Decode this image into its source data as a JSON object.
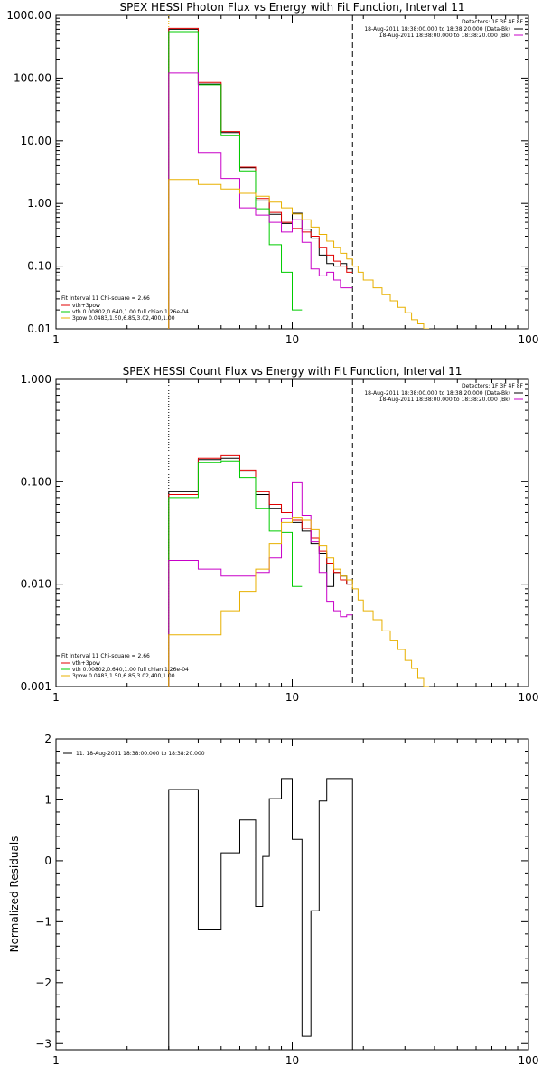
{
  "colors": {
    "black": "#000000",
    "red": "#e00000",
    "green": "#00cc00",
    "magenta": "#c800c8",
    "orange": "#e8b000",
    "background": "#ffffff"
  },
  "chart_data": [
    {
      "type": "line",
      "title": "SPEX HESSI Photon Flux vs Energy with Fit Function, Interval 11",
      "xlabel": "",
      "ylabel": "",
      "xscale": "log",
      "yscale": "log",
      "xlim": [
        1,
        100
      ],
      "ylim": [
        0.01,
        1000
      ],
      "xticks": [
        {
          "v": 1,
          "label": "1"
        },
        {
          "v": 10,
          "label": "10"
        },
        {
          "v": 100,
          "label": "100"
        }
      ],
      "yticks": [
        {
          "v": 0.01,
          "label": "0.01"
        },
        {
          "v": 0.1,
          "label": "0.10"
        },
        {
          "v": 1,
          "label": "1.00"
        },
        {
          "v": 10,
          "label": "10.00"
        },
        {
          "v": 100,
          "label": "100.00"
        },
        {
          "v": 1000,
          "label": "1000.00"
        }
      ],
      "vlines": [
        {
          "x": 3.0,
          "style": "dotted",
          "color": "#e8b000"
        },
        {
          "x": 18.0,
          "style": "dashed",
          "color": "#000000"
        }
      ],
      "legend_topright": {
        "placement": "top-right",
        "header": "Detectors: 1F 3F 4F 8F",
        "entries": [
          {
            "label": "18-Aug-2011 18:38:00.000 to 18:38:20.000 (Data-Bk)",
            "color": "#000000"
          },
          {
            "label": "18-Aug-2011 18:38:00.000 to 18:38:20.000 (Bk)",
            "color": "#c800c8"
          }
        ]
      },
      "legend_bottomleft": {
        "placement": "bottom-left",
        "header": "Fit Interval 11   Chi-square = 2.66",
        "entries": [
          {
            "label": "vth+3pow",
            "color": "#e00000"
          },
          {
            "label": "vth 0.00802,0.640,1.00  full chian 1.26e-04",
            "color": "#00cc00"
          },
          {
            "label": "3pow 0.0483,1.50,6.85,3.02,400,1.00",
            "color": "#e8b000"
          }
        ]
      },
      "series": [
        {
          "color": "#000000",
          "xedges": [
            3,
            4,
            5,
            6,
            7,
            8,
            9,
            10,
            11,
            12,
            13,
            14,
            15,
            16,
            17,
            18
          ],
          "values": [
            600,
            80,
            13.5,
            3.7,
            1.1,
            0.67,
            0.48,
            0.7,
            0.39,
            0.28,
            0.15,
            0.11,
            0.1,
            0.11,
            0.09
          ]
        },
        {
          "color": "#e00000",
          "xedges": [
            3,
            4,
            5,
            6,
            7,
            8,
            9,
            10,
            11,
            12,
            13,
            14,
            15,
            16,
            17,
            18
          ],
          "values": [
            620,
            85,
            14,
            3.8,
            1.2,
            0.72,
            0.5,
            0.4,
            0.35,
            0.3,
            0.2,
            0.15,
            0.12,
            0.1,
            0.08
          ]
        },
        {
          "color": "#00cc00",
          "xedges": [
            3,
            4,
            5,
            6,
            7,
            8,
            9,
            10,
            11
          ],
          "values": [
            550,
            78,
            12,
            3.3,
            0.82,
            0.22,
            0.08,
            0.02
          ]
        },
        {
          "color": "#c800c8",
          "xedges": [
            3,
            4,
            5,
            6,
            7,
            8,
            9,
            10,
            11,
            12,
            13,
            14,
            15,
            16,
            17,
            18
          ],
          "values": [
            120,
            6.5,
            2.5,
            0.85,
            0.65,
            0.5,
            0.35,
            0.55,
            0.24,
            0.09,
            0.07,
            0.08,
            0.06,
            0.045,
            0.045
          ]
        },
        {
          "color": "#e8b000",
          "xedges": [
            3,
            4,
            5,
            6,
            7,
            8,
            9,
            10,
            11,
            12,
            13,
            14,
            15,
            16,
            17,
            18,
            19,
            20,
            22,
            24,
            26,
            28,
            30,
            32,
            34,
            36,
            38
          ],
          "values": [
            2.4,
            2.0,
            1.7,
            1.45,
            1.3,
            1.05,
            0.85,
            0.68,
            0.55,
            0.42,
            0.32,
            0.25,
            0.2,
            0.16,
            0.13,
            0.1,
            0.08,
            0.06,
            0.045,
            0.035,
            0.028,
            0.022,
            0.018,
            0.014,
            0.012,
            0.01
          ]
        }
      ]
    },
    {
      "type": "line",
      "title": "SPEX HESSI Count Flux vs Energy with Fit Function, Interval 11",
      "xlabel": "",
      "ylabel": "",
      "xscale": "log",
      "yscale": "log",
      "xlim": [
        1,
        100
      ],
      "ylim": [
        0.001,
        1
      ],
      "xticks": [
        {
          "v": 1,
          "label": "1"
        },
        {
          "v": 10,
          "label": "10"
        },
        {
          "v": 100,
          "label": "100"
        }
      ],
      "yticks": [
        {
          "v": 0.001,
          "label": "0.001"
        },
        {
          "v": 0.01,
          "label": "0.010"
        },
        {
          "v": 0.1,
          "label": "0.100"
        },
        {
          "v": 1,
          "label": "1.000"
        }
      ],
      "vlines": [
        {
          "x": 3.0,
          "style": "dotted",
          "color": "#000000"
        },
        {
          "x": 18.0,
          "style": "dashed",
          "color": "#000000"
        }
      ],
      "legend_topright": {
        "placement": "top-right",
        "header": "Detectors: 1F 3F 4F 8F",
        "entries": [
          {
            "label": "18-Aug-2011 18:38:00.000 to 18:38:20.000 (Data-Bk)",
            "color": "#000000"
          },
          {
            "label": "18-Aug-2011 18:38:00.000 to 18:38:20.000 (Bk)",
            "color": "#c800c8"
          }
        ]
      },
      "legend_bottomleft": {
        "placement": "bottom-left",
        "header": "Fit Interval 11   Chi-square = 2.66",
        "entries": [
          {
            "label": "vth+3pow",
            "color": "#e00000"
          },
          {
            "label": "vth 0.00802,0.640,1.00  full chian 1.26e-04",
            "color": "#00cc00"
          },
          {
            "label": "3pow 0.0483,1.50,6.85,3.02,400,1.00",
            "color": "#e8b000"
          }
        ]
      },
      "series": [
        {
          "color": "#000000",
          "xedges": [
            3,
            4,
            5,
            6,
            7,
            8,
            9,
            10,
            11,
            12,
            13,
            14,
            15,
            16,
            17,
            18
          ],
          "values": [
            0.08,
            0.165,
            0.17,
            0.125,
            0.075,
            0.055,
            0.05,
            0.04,
            0.033,
            0.025,
            0.02,
            0.0095,
            0.013,
            0.012,
            0.01
          ]
        },
        {
          "color": "#e00000",
          "xedges": [
            3,
            4,
            5,
            6,
            7,
            8,
            9,
            10,
            11,
            12,
            13,
            14,
            15,
            16,
            17,
            18
          ],
          "values": [
            0.075,
            0.17,
            0.18,
            0.13,
            0.08,
            0.06,
            0.05,
            0.042,
            0.035,
            0.028,
            0.021,
            0.016,
            0.013,
            0.011,
            0.01
          ]
        },
        {
          "color": "#00cc00",
          "xedges": [
            3,
            4,
            5,
            6,
            7,
            8,
            9,
            10,
            11
          ],
          "values": [
            0.07,
            0.155,
            0.16,
            0.11,
            0.055,
            0.033,
            0.032,
            0.0095
          ]
        },
        {
          "color": "#c800c8",
          "xedges": [
            3,
            4,
            5,
            6,
            7,
            8,
            9,
            10,
            11,
            12,
            13,
            14,
            15,
            16,
            17,
            18
          ],
          "values": [
            0.017,
            0.014,
            0.012,
            0.012,
            0.013,
            0.018,
            0.044,
            0.098,
            0.047,
            0.026,
            0.013,
            0.0068,
            0.0055,
            0.0048,
            0.005
          ]
        },
        {
          "color": "#e8b000",
          "xedges": [
            3,
            4,
            5,
            6,
            7,
            8,
            9,
            10,
            11,
            12,
            13,
            14,
            15,
            16,
            17,
            18,
            19,
            20,
            22,
            24,
            26,
            28,
            30,
            32,
            34,
            36,
            38
          ],
          "values": [
            0.0032,
            0.0032,
            0.0055,
            0.0085,
            0.014,
            0.025,
            0.04,
            0.045,
            0.042,
            0.034,
            0.024,
            0.018,
            0.014,
            0.012,
            0.011,
            0.009,
            0.007,
            0.0055,
            0.0045,
            0.0035,
            0.0028,
            0.0023,
            0.0018,
            0.0015,
            0.0012,
            0.001
          ]
        }
      ]
    },
    {
      "type": "line",
      "title": "",
      "xlabel": "",
      "ylabel": "Normalized Residuals",
      "xscale": "log",
      "yscale": "linear",
      "xlim": [
        1,
        100
      ],
      "ylim": [
        -3.1,
        2.0
      ],
      "xticks": [
        {
          "v": 1,
          "label": "1"
        },
        {
          "v": 10,
          "label": "10"
        },
        {
          "v": 100,
          "label": "100"
        }
      ],
      "yticks": [
        {
          "v": -3,
          "label": "−3"
        },
        {
          "v": -2,
          "label": "−2"
        },
        {
          "v": -1,
          "label": "−1"
        },
        {
          "v": 0,
          "label": "0"
        },
        {
          "v": 1,
          "label": "1"
        },
        {
          "v": 2,
          "label": "2"
        }
      ],
      "vlines": [],
      "legend_topleft": {
        "placement": "top-left",
        "entries": [
          {
            "label": "11. 18-Aug-2011 18:38:00.000 to 18:38:20.000",
            "color": "#000000"
          }
        ]
      },
      "series": [
        {
          "color": "#000000",
          "xedges": [
            3,
            4,
            5,
            6,
            7,
            7.5,
            8,
            9,
            10,
            11,
            12,
            13,
            14,
            15,
            16,
            17,
            18
          ],
          "values": [
            1.17,
            -1.12,
            0.13,
            0.67,
            -0.75,
            0.07,
            1.02,
            1.35,
            0.35,
            -2.88,
            -0.82,
            0.98,
            1.35,
            1.35,
            1.35,
            1.35
          ],
          "drop_to_bottom": true
        }
      ]
    }
  ]
}
